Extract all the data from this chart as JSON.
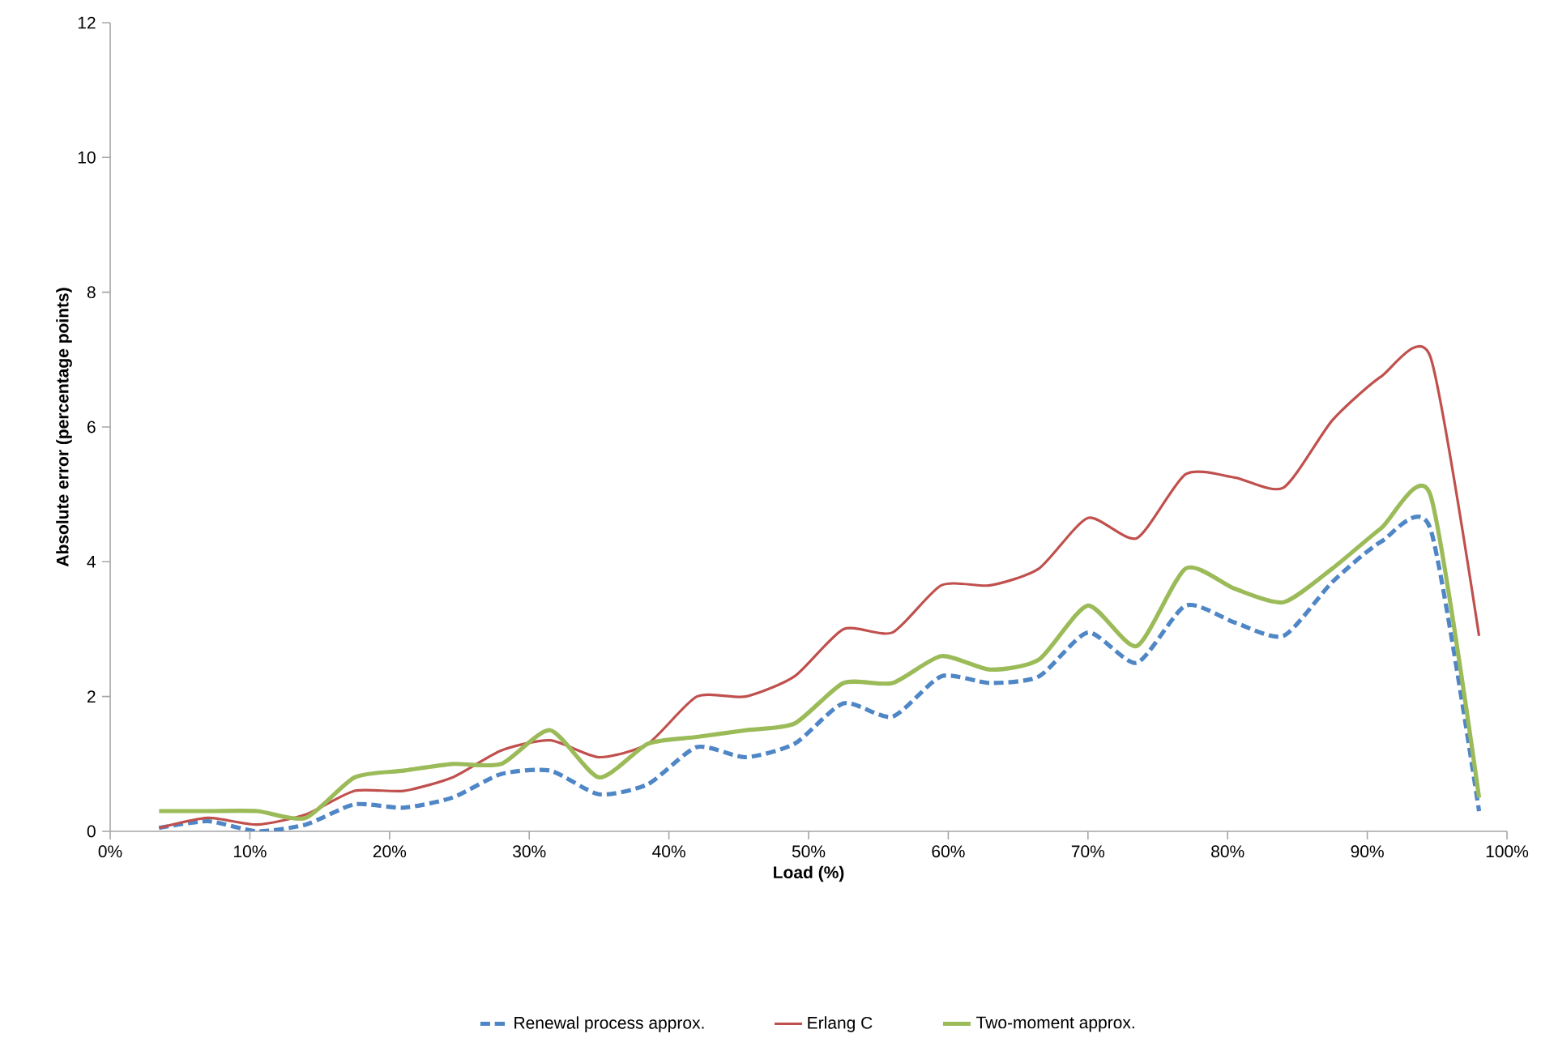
{
  "chart_data": {
    "type": "line",
    "xlabel": "Load (%)",
    "ylabel": "Absolute error  (percentage points)",
    "x": [
      3.5,
      7,
      10.5,
      14,
      17.5,
      21,
      24.5,
      28,
      31.5,
      35,
      38.5,
      42,
      45.5,
      49,
      52.5,
      56,
      59.5,
      63,
      66.5,
      70,
      73.5,
      77,
      80.5,
      84,
      87.5,
      91,
      94.5,
      98
    ],
    "series": [
      {
        "name": "Renewal process approx.",
        "color": "#4f86c6",
        "line_style": "dashed",
        "values": [
          0.05,
          0.15,
          0.0,
          0.1,
          0.4,
          0.35,
          0.5,
          0.85,
          0.9,
          0.55,
          0.7,
          1.25,
          1.1,
          1.3,
          1.9,
          1.7,
          2.3,
          2.2,
          2.3,
          2.95,
          2.5,
          3.35,
          3.1,
          2.9,
          3.7,
          4.3,
          4.5,
          0.3
        ]
      },
      {
        "name": "Erlang C",
        "color": "#c0504d",
        "line_style": "solid",
        "values": [
          0.05,
          0.2,
          0.1,
          0.25,
          0.6,
          0.6,
          0.8,
          1.2,
          1.35,
          1.1,
          1.3,
          2.0,
          2.0,
          2.3,
          3.0,
          2.95,
          3.65,
          3.65,
          3.9,
          4.65,
          4.35,
          5.3,
          5.25,
          5.1,
          6.1,
          6.75,
          7.05,
          2.9
        ]
      },
      {
        "name": "Two-moment approx.",
        "color": "#9bbb59",
        "line_style": "solid",
        "values": [
          0.3,
          0.3,
          0.3,
          0.2,
          0.8,
          0.9,
          1.0,
          1.0,
          1.5,
          0.8,
          1.3,
          1.4,
          1.5,
          1.6,
          2.2,
          2.2,
          2.6,
          2.4,
          2.55,
          3.35,
          2.75,
          3.9,
          3.6,
          3.4,
          3.9,
          4.5,
          5.0,
          0.5
        ]
      }
    ],
    "xlim": [
      0,
      100
    ],
    "xticks": [
      {
        "value": 0,
        "label": "0%"
      },
      {
        "value": 10,
        "label": "10%"
      },
      {
        "value": 20,
        "label": "20%"
      },
      {
        "value": 30,
        "label": "30%"
      },
      {
        "value": 40,
        "label": "40%"
      },
      {
        "value": 50,
        "label": "50%"
      },
      {
        "value": 60,
        "label": "60%"
      },
      {
        "value": 70,
        "label": "70%"
      },
      {
        "value": 80,
        "label": "80%"
      },
      {
        "value": 90,
        "label": "90%"
      },
      {
        "value": 100,
        "label": "100%"
      }
    ],
    "ylim": [
      0,
      12
    ],
    "yticks": [
      0,
      2,
      4,
      6,
      8,
      10,
      12
    ],
    "grid": false,
    "legend": "bottom",
    "marker": "none"
  }
}
